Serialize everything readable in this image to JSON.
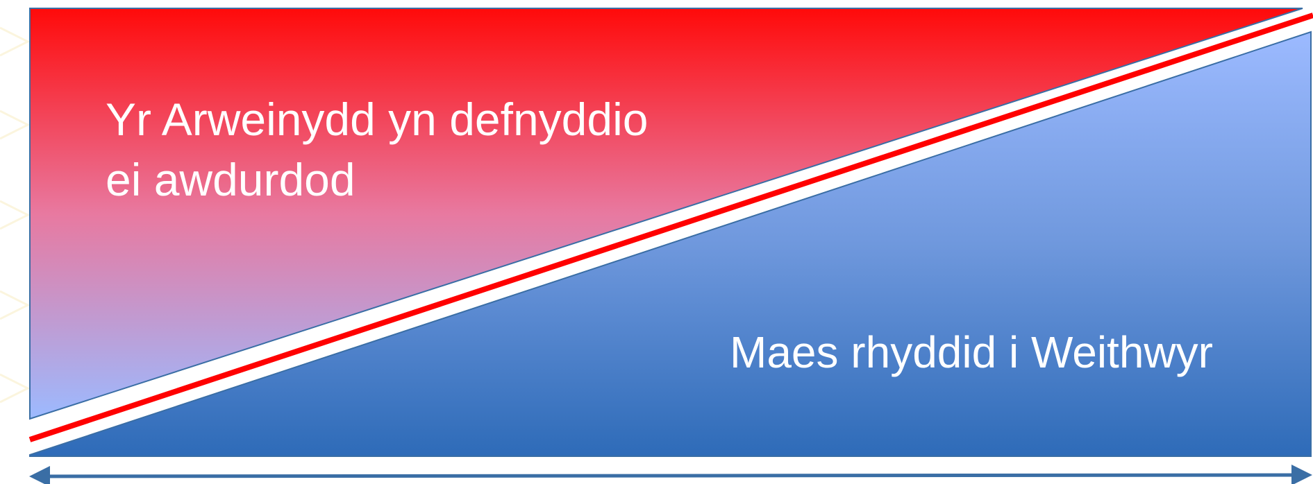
{
  "diagram": {
    "top_label_line1": "Yr Arweinydd yn defnyddio",
    "top_label_line2": "ei awdurdod",
    "bottom_label": "Maes rhyddid i Weithwyr"
  },
  "colors": {
    "red_top": "#ff0a0a",
    "red_mid": "#e879a0",
    "blue_light": "#9cbaff",
    "blue_mid": "#6f98dd",
    "blue_dark": "#2e6bb8",
    "divider_red": "#ff0000",
    "arrow": "#3a6ea5",
    "outline": "#3a6ea5"
  }
}
